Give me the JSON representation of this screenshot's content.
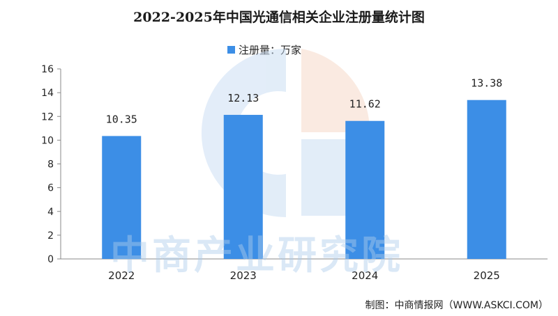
{
  "chart_data": {
    "type": "bar",
    "title": "2022-2025年中国光通信相关企业注册量统计图",
    "categories": [
      "2022",
      "2023",
      "2024",
      "2025"
    ],
    "series": [
      {
        "name": "注册量：万家",
        "values": [
          10.35,
          12.13,
          11.62,
          13.38
        ]
      }
    ],
    "data_labels": [
      "10.35",
      "12.13",
      "11.62",
      "13.38"
    ],
    "y_ticks": [
      "0",
      "2",
      "4",
      "6",
      "8",
      "10",
      "12",
      "14",
      "16"
    ],
    "ylim": [
      0,
      16
    ],
    "xlabel": "",
    "ylabel": "",
    "legend": "top-center",
    "grid": false
  },
  "source_note": "制图：中商情报网（WWW.ASKCI.COM）",
  "watermark": "中商产业研究院",
  "colors": {
    "bar": "#3c8ee6",
    "axis": "#888888",
    "watermark_blue": "#c7dcf3",
    "watermark_orange": "#f6d7c4"
  }
}
